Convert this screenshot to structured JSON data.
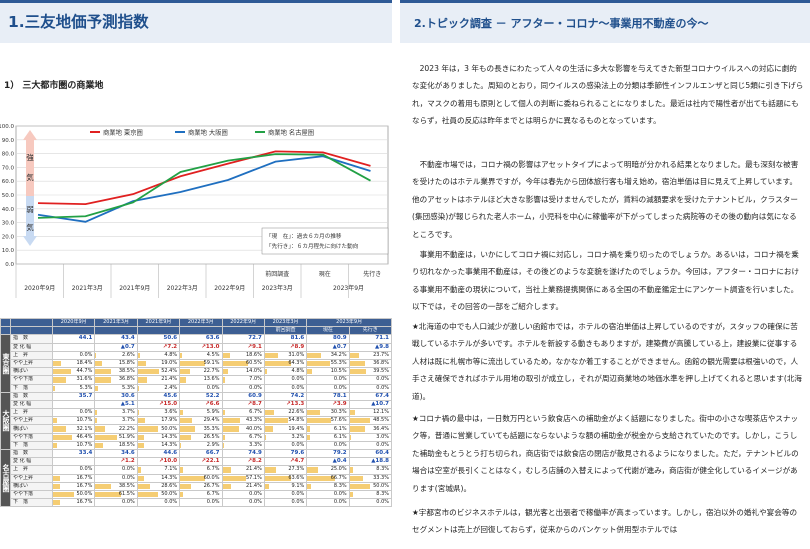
{
  "left": {
    "header_title": "1.三友地価予測指数",
    "subtitle": "1） 三大都市圏の商業地",
    "chart_data": {
      "type": "line",
      "title": "",
      "categories": [
        "2020年9月",
        "2021年3月",
        "2021年9月",
        "2022年3月",
        "2022年9月",
        "2023年3月",
        "2023年9月",
        "先行き"
      ],
      "series": [
        {
          "name": "商業地 東京圏",
          "color": "#e02020",
          "values": [
            44.1,
            43.4,
            50.6,
            63.6,
            72.7,
            81.6,
            80.9,
            71.1
          ]
        },
        {
          "name": "商業地 大阪圏",
          "color": "#1f6fc0",
          "values": [
            35.7,
            30.6,
            45.6,
            52.2,
            60.9,
            74.2,
            78.1,
            67.4
          ]
        },
        {
          "name": "商業地 名古屋圏",
          "color": "#22a045",
          "values": [
            33.4,
            34.6,
            44.6,
            66.7,
            74.9,
            79.6,
            79.2,
            60.4
          ]
        }
      ],
      "ylim": [
        0,
        100
      ],
      "yticks": [
        "0.0",
        "10.0",
        "20.0",
        "30.0",
        "40.0",
        "50.0",
        "60.0",
        "70.0",
        "80.0",
        "90.0",
        "100.0"
      ],
      "arrow_labels": [
        "強",
        "気",
        "弱",
        "気"
      ],
      "note_lines": [
        "「現　在」：過去６カ月の推移",
        "「先行き」：６カ月程先に向けた動向"
      ],
      "x_upper": [
        "前回調査",
        "現在",
        "先行き"
      ],
      "x_lower": [
        "2020年9月",
        "2021年3月",
        "2021年9月",
        "2022年3月",
        "2022年9月",
        "2023年3月",
        "2023年9月"
      ]
    },
    "table": {
      "head_top": [
        "2020年9月",
        "2021年3月",
        "2021年9月",
        "2022年3月",
        "2022年9月",
        "2023年3月",
        "2023年9月"
      ],
      "head_sub": [
        "前回調査",
        "現在",
        "先行き"
      ],
      "row_labels": [
        "指　数",
        "変 化 幅",
        "上　昇",
        "やや上昇",
        "横ばい",
        "やや下落",
        "下　落"
      ],
      "groups": [
        {
          "name": "東京圏",
          "index": [
            "44.1",
            "43.4",
            "50.6",
            "63.6",
            "72.7",
            "81.6",
            "80.9",
            "71.1"
          ],
          "change": [
            "▲0.7",
            "↗7.2",
            "↗13.0",
            "↗9.1",
            "↗8.9",
            "▲0.7",
            "▲9.8"
          ],
          "rows": [
            [
              "0.0%",
              "2.6%",
              "4.8%",
              "4.5%",
              "18.6%",
              "31.0%",
              "34.2%",
              "23.7%"
            ],
            [
              "18.4%",
              "15.8%",
              "19.0%",
              "59.1%",
              "60.5%",
              "64.3%",
              "55.3%",
              "36.8%"
            ],
            [
              "44.7%",
              "38.5%",
              "52.4%",
              "22.7%",
              "14.0%",
              "4.8%",
              "10.5%",
              "39.5%"
            ],
            [
              "31.6%",
              "36.8%",
              "21.4%",
              "13.6%",
              "7.0%",
              "0.0%",
              "0.0%",
              "0.0%"
            ],
            [
              "5.3%",
              "5.3%",
              "2.4%",
              "0.0%",
              "0.0%",
              "0.0%",
              "0.0%",
              "0.0%"
            ]
          ]
        },
        {
          "name": "大阪圏",
          "index": [
            "35.7",
            "30.6",
            "45.6",
            "52.2",
            "60.9",
            "74.2",
            "78.1",
            "67.4"
          ],
          "change": [
            "▲5.1",
            "↗15.0",
            "↗6.6",
            "↗8.7",
            "↗13.3",
            "↗3.9",
            "▲10.7"
          ],
          "rows": [
            [
              "0.0%",
              "3.7%",
              "3.6%",
              "5.9%",
              "6.7%",
              "22.6%",
              "30.3%",
              "12.1%"
            ],
            [
              "10.7%",
              "3.7%",
              "17.9%",
              "29.4%",
              "43.3%",
              "54.8%",
              "57.6%",
              "48.5%"
            ],
            [
              "32.1%",
              "22.2%",
              "50.0%",
              "35.3%",
              "40.0%",
              "19.4%",
              "6.1%",
              "36.4%"
            ],
            [
              "46.4%",
              "51.9%",
              "14.3%",
              "26.5%",
              "6.7%",
              "3.2%",
              "6.1%",
              "3.0%"
            ],
            [
              "10.7%",
              "18.5%",
              "14.3%",
              "2.9%",
              "3.3%",
              "0.0%",
              "0.0%",
              "0.0%"
            ]
          ]
        },
        {
          "name": "名古屋圏",
          "index": [
            "33.4",
            "34.6",
            "44.6",
            "66.7",
            "74.9",
            "79.6",
            "79.2",
            "60.4"
          ],
          "change": [
            "↗1.2",
            "↗10.0",
            "↗22.1",
            "↗8.2",
            "↗4.7",
            "▲0.4",
            "▲18.8"
          ],
          "rows": [
            [
              "0.0%",
              "0.0%",
              "7.1%",
              "6.7%",
              "21.4%",
              "27.3%",
              "25.0%",
              "8.3%"
            ],
            [
              "16.7%",
              "0.0%",
              "14.3%",
              "60.0%",
              "57.1%",
              "63.6%",
              "66.7%",
              "33.3%"
            ],
            [
              "16.7%",
              "38.5%",
              "28.6%",
              "26.7%",
              "21.4%",
              "9.1%",
              "8.3%",
              "50.0%"
            ],
            [
              "50.0%",
              "61.5%",
              "50.0%",
              "6.7%",
              "0.0%",
              "0.0%",
              "0.0%",
              "8.3%"
            ],
            [
              "16.7%",
              "0.0%",
              "0.0%",
              "0.0%",
              "0.0%",
              "0.0%",
              "0.0%",
              "0.0%"
            ]
          ]
        }
      ]
    }
  },
  "right": {
    "header_title": "2.トピック調査 － アフター・コロナ～事業用不動産の今～",
    "paragraphs": [
      "　2023 年は，3 年もの長きにわたって人々の生活に多大な影響を与えてきた新型コロナウイルスへの対応に劇的な変化がありました。周知のとおり，同ウイルスの感染法上の分類は季節性インフルエンザと同じ5類に引き下げられ，マスクの着用も原則として個人の判断に委ねられることになりました。最近は社内で陽性者が出ても話題にもならず，社員の反応は昨年までとは明らかに異なるものとなっています。",
      "　不動産市場では，コロナ禍の影響はアセットタイプによって明暗が分かれる結果となりました。最も深刻な被害を受けたのはホテル業界ですが，今年は春先から団体旅行客も増え始め，宿泊単価は目に見えて上昇しています。他のアセットはホテルほど大きな影響は受けませんでしたが，賃料の減額要求を受けたテナントビル，クラスター(集団感染)が報じられた老人ホーム，小児科を中心に稼働率が下がってしまった病院等のその後の動向は気になるところです。",
      "　事業用不動産は，いかにしてコロナ禍に対応し，コロナ禍を乗り切ったのでしょうか。あるいは，コロナ禍を乗り切れなかった事業用不動産は，その後どのような変貌を遂げたのでしょうか。今回は，アフター・コロナにおける事業用不動産の現状について，当社上業務提携関係にある全国の不動産鑑定士にアンケート調査を行いました。以下では，その回答の一部をご紹介します。",
      "★北海道の中でも人口減少が激しい函館市では，ホテルの宿泊単価は上昇しているのですが，スタッフの確保に苦戦しているホテルが多いです。ホテルを新設する動きもありますが，建築費が高騰している上，建設業に従事する人材は既に札幌市等に流出しているため，なかなか着工することができません。函館の観光需要は根強いので，人手さえ確保できればホテル用地の取引が成立し，それが周辺商業地の地価水準を押し上げてくれると思います(北海道)。",
      "★コロナ禍の最中は，一日数万円という飲食店への補助金がよく話題になりました。街中の小さな喫茶店やスナック等，普通に営業していても話題にならないような額の補助金が税金から支給されていたのです。しかし，こうした補助金もとうとう打ち切られ，商店街では飲食店の閉店が散見されるようになりました。ただ，テナントビルの場合は空室が長引くことはなく，むしろ店舗の入替えによって代謝が進み，商店街が健全化しているイメージがあります(宮城県)。",
      "★宇都宮市のビジネスホテルは，観光客と出張者で稼働率が高まっています。しかし，宿泊以外の婚礼や宴会等のセグメントは売上が回復しておらず，従来からのバンケット併用型ホテルでは"
    ]
  }
}
